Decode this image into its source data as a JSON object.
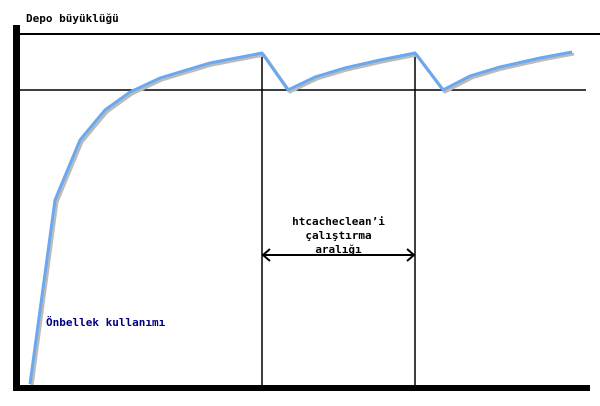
{
  "y_axis_label": "Depo büyüklüğü",
  "curve_label": "Önbellek kullanımı",
  "interval_label": [
    "htcacheclean’i",
    "çalıştırma",
    "aralığı"
  ],
  "colors": {
    "curve": "#6aa8f0",
    "curve_label": "#000080",
    "lines": "#000000"
  }
}
